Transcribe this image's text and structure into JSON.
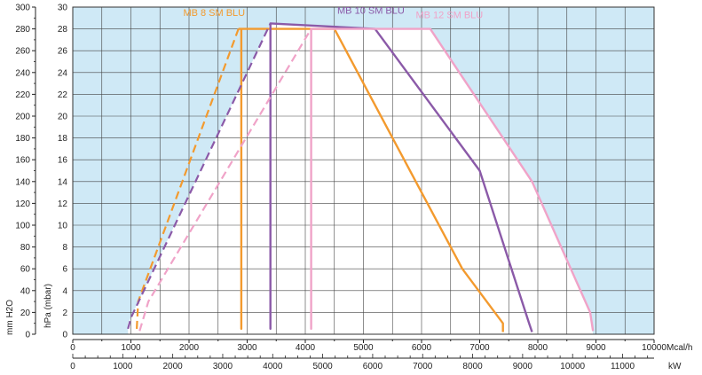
{
  "chart_data": {
    "type": "line",
    "series": [
      {
        "name": "MB 8 SM BLU",
        "color": "#f39a2e",
        "dashed": [
          [
            1100,
            0.5
          ],
          [
            1125,
            3
          ],
          [
            2850,
            28
          ]
        ],
        "solid": [
          [
            2850,
            28
          ],
          [
            2900,
            28
          ],
          [
            2900,
            0.5
          ],
          [
            2900,
            28
          ],
          [
            4500,
            28
          ],
          [
            6700,
            6
          ],
          [
            7400,
            1
          ],
          [
            7400,
            0.2
          ]
        ]
      },
      {
        "name": "MB 10 SM BLU",
        "color": "#8b5aa8",
        "dashed": [
          [
            950,
            0.5
          ],
          [
            1000,
            1.5
          ],
          [
            3400,
            28.5
          ]
        ],
        "solid": [
          [
            3400,
            28.5
          ],
          [
            3400,
            0.5
          ],
          [
            3400,
            28.5
          ],
          [
            5200,
            28
          ],
          [
            7000,
            15
          ],
          [
            7850,
            1
          ],
          [
            7900,
            0.2
          ]
        ]
      },
      {
        "name": "MB 12 SM BLU",
        "color": "#f0a3c8",
        "dashed": [
          [
            1150,
            0.3
          ],
          [
            1300,
            3
          ],
          [
            4100,
            28
          ]
        ],
        "solid": [
          [
            4100,
            28
          ],
          [
            4100,
            0.5
          ],
          [
            4100,
            28
          ],
          [
            6150,
            28
          ],
          [
            6900,
            22
          ],
          [
            7900,
            14
          ],
          [
            8900,
            2
          ],
          [
            8950,
            0.3
          ]
        ]
      }
    ],
    "x_mcal": {
      "label": "Mcal/h",
      "range": [
        0,
        10000
      ],
      "ticks": [
        "0",
        "1000",
        "2000",
        "3000",
        "4000",
        "5000",
        "6000",
        "7000",
        "8000",
        "9000",
        "10000"
      ]
    },
    "x_kw": {
      "label": "kW",
      "ticks": [
        "0",
        "1000",
        "2000",
        "3000",
        "4000",
        "5000",
        "6000",
        "7000",
        "8000",
        "9000",
        "10000",
        "11000"
      ]
    },
    "y_hpa": {
      "label": "hPa (mbar)",
      "range": [
        0,
        30
      ],
      "ticks": [
        "0",
        "2",
        "4",
        "6",
        "8",
        "10",
        "12",
        "14",
        "16",
        "18",
        "20",
        "22",
        "24",
        "26",
        "28",
        "30"
      ]
    },
    "y_mmh2o": {
      "label": "mm H2O",
      "ticks": [
        "0",
        "20",
        "40",
        "60",
        "80",
        "100",
        "120",
        "140",
        "160",
        "180",
        "200",
        "220",
        "240",
        "260",
        "280",
        "300"
      ]
    },
    "grid": true,
    "background_color": "#cfe9f6"
  }
}
